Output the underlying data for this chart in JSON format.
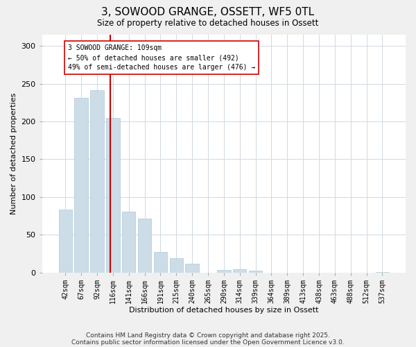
{
  "title": "3, SOWOOD GRANGE, OSSETT, WF5 0TL",
  "subtitle": "Size of property relative to detached houses in Ossett",
  "xlabel": "Distribution of detached houses by size in Ossett",
  "ylabel": "Number of detached properties",
  "bar_labels": [
    "42sqm",
    "67sqm",
    "92sqm",
    "116sqm",
    "141sqm",
    "166sqm",
    "191sqm",
    "215sqm",
    "240sqm",
    "265sqm",
    "290sqm",
    "314sqm",
    "339sqm",
    "364sqm",
    "389sqm",
    "413sqm",
    "438sqm",
    "463sqm",
    "488sqm",
    "512sqm",
    "537sqm"
  ],
  "bar_values": [
    83,
    231,
    241,
    205,
    81,
    71,
    27,
    19,
    12,
    0,
    3,
    4,
    2,
    0,
    0,
    0,
    0,
    0,
    0,
    0,
    1
  ],
  "bar_color": "#ccdde8",
  "bar_edge_color": "#aec8d8",
  "vline_x": 2.82,
  "vline_color": "#cc0000",
  "annotation_text": "3 SOWOOD GRANGE: 109sqm\n← 50% of detached houses are smaller (492)\n49% of semi-detached houses are larger (476) →",
  "annotation_box_color": "white",
  "annotation_box_edge": "#cc0000",
  "ylim": [
    0,
    315
  ],
  "yticks": [
    0,
    50,
    100,
    150,
    200,
    250,
    300
  ],
  "footer1": "Contains HM Land Registry data © Crown copyright and database right 2025.",
  "footer2": "Contains public sector information licensed under the Open Government Licence v3.0.",
  "background_color": "#f0f0f0",
  "plot_background_color": "#ffffff",
  "grid_color": "#d0d8e0"
}
